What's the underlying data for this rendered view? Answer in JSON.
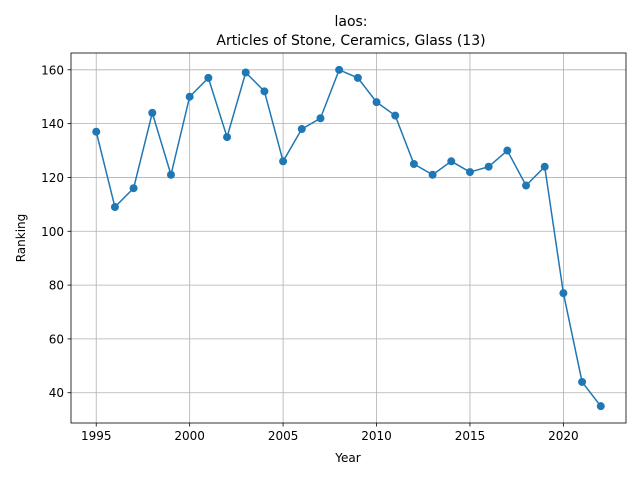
{
  "chart_data": {
    "type": "line",
    "title_line1": "laos:",
    "title_line2": "Articles of Stone, Ceramics, Glass (13)",
    "xlabel": "Year",
    "ylabel": "Ranking",
    "xlim": [
      1993.65,
      2023.35
    ],
    "ylim": [
      28.75,
      166.25
    ],
    "xticks": [
      1995,
      2000,
      2005,
      2010,
      2015,
      2020
    ],
    "yticks": [
      40,
      60,
      80,
      100,
      120,
      140,
      160
    ],
    "grid": true,
    "line_color": "#1f77b4",
    "series": [
      {
        "x": [
          1995,
          1996,
          1997,
          1998,
          1999,
          2000,
          2001,
          2002,
          2003,
          2004,
          2005,
          2006,
          2007,
          2008,
          2009,
          2010,
          2011,
          2012,
          2013,
          2014,
          2015,
          2016,
          2017,
          2018,
          2019,
          2020,
          2021,
          2022
        ],
        "values": [
          137,
          109,
          116,
          144,
          121,
          150,
          157,
          135,
          159,
          152,
          126,
          138,
          142,
          160,
          157,
          148,
          143,
          125,
          121,
          126,
          122,
          124,
          130,
          117,
          124,
          77,
          44,
          35
        ]
      }
    ]
  }
}
